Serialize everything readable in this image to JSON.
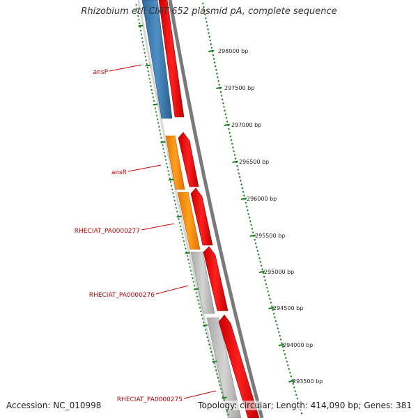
{
  "title": "Rhizobium etli CIAT 652 plasmid pA, complete sequence",
  "accession_text": "Accession: NC_010998",
  "summary_text": "Topology: circular; Length: 414,090 bp; Genes: 381",
  "colors": {
    "ruler": "#1e7d1e",
    "gene_label": "#bf0000",
    "blue_feature": "#3b78aa",
    "orange_feature": "#ff8c00",
    "red_feature": "#ff0000",
    "gray_feature": "#c0c0c0",
    "backbone": "#888888"
  },
  "ruler_labels": [
    "298000 bp",
    "297500 bp",
    "297000 bp",
    "296500 bp",
    "296000 bp",
    "295500 bp",
    "295000 bp",
    "294500 bp",
    "294000 bp",
    "293500 bp"
  ],
  "gene_labels": [
    "ansP",
    "ansR",
    "RHECIAT_PA0000277",
    "RHECIAT_PA0000276",
    "RHECIAT_PA0000275"
  ]
}
